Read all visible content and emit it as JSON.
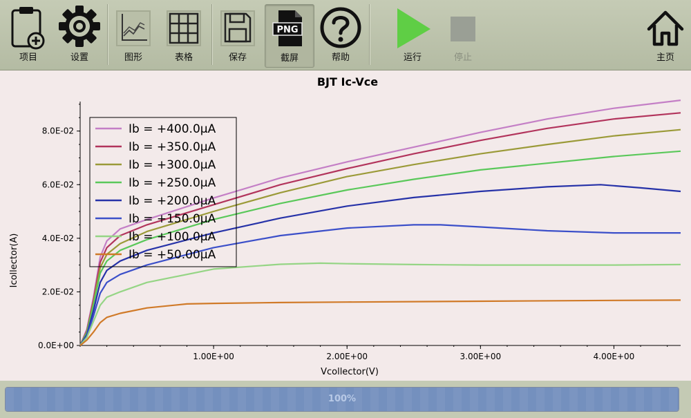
{
  "toolbar": {
    "project": "项目",
    "settings": "设置",
    "graph": "图形",
    "table": "表格",
    "save": "保存",
    "screenshot": "截屏",
    "screenshot_badge": "PNG",
    "help": "帮助",
    "run": "运行",
    "stop": "停止",
    "home": "主页"
  },
  "colors": {
    "toolbar_bg": "#bcc2ac",
    "run_green": "#5fce45",
    "stop_gray": "#9a9f95",
    "plot_bg": "#f3eaea"
  },
  "icons": {
    "project": "clipboard-plus-icon",
    "settings": "gear-icon",
    "graph": "line-graph-icon",
    "table": "grid-table-icon",
    "save": "floppy-disk-icon",
    "screenshot": "png-file-icon",
    "help": "question-circle-icon",
    "run": "play-icon",
    "stop": "stop-icon",
    "home": "home-icon"
  },
  "progress": {
    "value": 1.0,
    "text": "100%"
  },
  "chart_data": {
    "type": "line",
    "title": "BJT Ic-Vce",
    "xlabel": "Vcollector(V)",
    "ylabel": "Icollector(A)",
    "xlim": [
      0,
      4.5
    ],
    "ylim": [
      0,
      0.091
    ],
    "xticks": [
      1,
      2,
      3,
      4
    ],
    "xtick_labels": [
      "1.00E+00",
      "2.00E+00",
      "3.00E+00",
      "4.00E+00"
    ],
    "yticks": [
      0,
      0.02,
      0.04,
      0.06,
      0.08
    ],
    "ytick_labels": [
      "0.0E+00",
      "2.0E-02",
      "4.0E-02",
      "6.0E-02",
      "8.0E-02"
    ],
    "grid": false,
    "legend_position": "top-left",
    "series": [
      {
        "name": "Ib = +400.0µA",
        "color": "#c47fc6",
        "x": [
          0,
          0.05,
          0.1,
          0.15,
          0.2,
          0.3,
          0.5,
          1.0,
          1.5,
          2.0,
          2.5,
          3.0,
          3.5,
          4.0,
          4.5
        ],
        "y": [
          0,
          0.006,
          0.018,
          0.033,
          0.039,
          0.0435,
          0.047,
          0.055,
          0.0625,
          0.0685,
          0.074,
          0.0795,
          0.0845,
          0.0885,
          0.0915
        ]
      },
      {
        "name": "Ib = +350.0µA",
        "color": "#b2345c",
        "x": [
          0,
          0.05,
          0.1,
          0.15,
          0.2,
          0.3,
          0.5,
          1.0,
          1.5,
          2.0,
          2.5,
          3.0,
          3.5,
          4.0,
          4.5
        ],
        "y": [
          0,
          0.0055,
          0.017,
          0.031,
          0.0365,
          0.041,
          0.045,
          0.0525,
          0.06,
          0.066,
          0.0715,
          0.0765,
          0.081,
          0.0845,
          0.0868
        ]
      },
      {
        "name": "Ib = +300.0µA",
        "color": "#9b9a38",
        "x": [
          0,
          0.05,
          0.1,
          0.15,
          0.2,
          0.3,
          0.5,
          1.0,
          1.5,
          2.0,
          2.5,
          3.0,
          3.5,
          4.0,
          4.5
        ],
        "y": [
          0,
          0.005,
          0.016,
          0.029,
          0.034,
          0.038,
          0.0425,
          0.05,
          0.057,
          0.063,
          0.0675,
          0.0715,
          0.075,
          0.0782,
          0.0805
        ]
      },
      {
        "name": "Ib = +250.0µA",
        "color": "#5ac85a",
        "x": [
          0,
          0.05,
          0.1,
          0.15,
          0.2,
          0.3,
          0.5,
          1.0,
          1.5,
          2.0,
          2.5,
          3.0,
          3.5,
          4.0,
          4.5
        ],
        "y": [
          0,
          0.0048,
          0.015,
          0.027,
          0.0315,
          0.0355,
          0.0395,
          0.047,
          0.053,
          0.058,
          0.062,
          0.0655,
          0.068,
          0.0705,
          0.0725
        ]
      },
      {
        "name": "Ib = +200.0µA",
        "color": "#2632a8",
        "x": [
          0,
          0.05,
          0.1,
          0.15,
          0.2,
          0.3,
          0.5,
          1.0,
          1.5,
          2.0,
          2.5,
          3.0,
          3.5,
          3.9,
          4.2,
          4.5
        ],
        "y": [
          0,
          0.004,
          0.013,
          0.0235,
          0.028,
          0.0315,
          0.0355,
          0.042,
          0.0475,
          0.052,
          0.0552,
          0.0575,
          0.0592,
          0.06,
          0.0588,
          0.0575
        ]
      },
      {
        "name": "Ib = +150.0µA",
        "color": "#3b4fc9",
        "x": [
          0,
          0.05,
          0.1,
          0.15,
          0.2,
          0.3,
          0.5,
          1.0,
          1.5,
          2.0,
          2.5,
          2.7,
          3.0,
          3.5,
          4.0,
          4.5
        ],
        "y": [
          0,
          0.0035,
          0.011,
          0.0195,
          0.0235,
          0.0265,
          0.03,
          0.0365,
          0.041,
          0.0438,
          0.045,
          0.045,
          0.0442,
          0.0428,
          0.042,
          0.042
        ]
      },
      {
        "name": "Ib = +100.0µA",
        "color": "#95d585",
        "x": [
          0,
          0.05,
          0.1,
          0.15,
          0.2,
          0.3,
          0.5,
          1.0,
          1.5,
          1.8,
          2.0,
          2.5,
          3.0,
          3.5,
          4.0,
          4.5
        ],
        "y": [
          0,
          0.003,
          0.009,
          0.015,
          0.018,
          0.02,
          0.0235,
          0.0285,
          0.0303,
          0.0307,
          0.0305,
          0.0302,
          0.03,
          0.03,
          0.03,
          0.0302
        ]
      },
      {
        "name": "Ib = +50.00µA",
        "color": "#d07a28",
        "x": [
          0,
          0.05,
          0.1,
          0.15,
          0.2,
          0.3,
          0.5,
          0.8,
          1.0,
          1.5,
          2.0,
          3.0,
          4.0,
          4.5
        ],
        "y": [
          0,
          0.002,
          0.005,
          0.0085,
          0.0105,
          0.012,
          0.014,
          0.0155,
          0.0157,
          0.016,
          0.0162,
          0.0165,
          0.0168,
          0.0169
        ]
      }
    ]
  }
}
